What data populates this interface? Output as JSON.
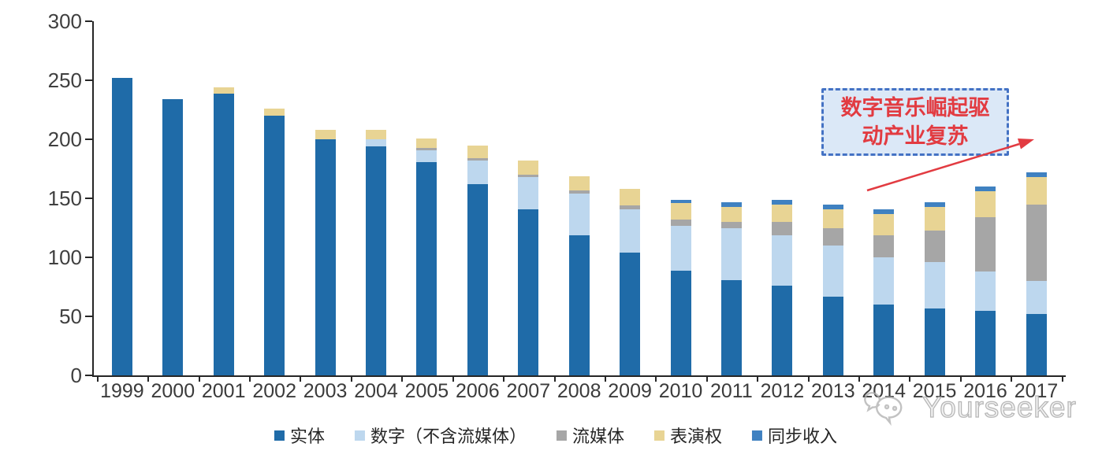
{
  "chart_data": {
    "type": "bar",
    "stacked": true,
    "title": "",
    "xlabel": "",
    "ylabel": "",
    "ylim": [
      0,
      300
    ],
    "y_ticks": [
      0,
      50,
      100,
      150,
      200,
      250,
      300
    ],
    "grid": false,
    "legend_position": "bottom",
    "categories": [
      "1999",
      "2000",
      "2001",
      "2002",
      "2003",
      "2004",
      "2005",
      "2006",
      "2007",
      "2008",
      "2009",
      "2010",
      "2011",
      "2012",
      "2013",
      "2014",
      "2015",
      "2016",
      "2017"
    ],
    "series": [
      {
        "name": "实体",
        "color": "#1f6ba8",
        "values": [
          252,
          234,
          239,
          220,
          200,
          194,
          181,
          162,
          141,
          119,
          104,
          89,
          81,
          76,
          67,
          60,
          57,
          55,
          52
        ]
      },
      {
        "name": "数字（不含流媒体）",
        "color": "#bdd7ee",
        "values": [
          0,
          0,
          0,
          0,
          0,
          6,
          10,
          20,
          27,
          35,
          37,
          38,
          44,
          43,
          43,
          40,
          39,
          33,
          28
        ]
      },
      {
        "name": "流媒体",
        "color": "#a6a6a6",
        "values": [
          0,
          0,
          0,
          0,
          0,
          0,
          2,
          2,
          2,
          3,
          3,
          5,
          5,
          11,
          15,
          19,
          27,
          46,
          65
        ]
      },
      {
        "name": "表演权",
        "color": "#e8d494",
        "values": [
          0,
          0,
          5,
          6,
          8,
          8,
          8,
          11,
          12,
          12,
          14,
          14,
          13,
          15,
          16,
          18,
          20,
          22,
          23
        ]
      },
      {
        "name": "同步收入",
        "color": "#3f81c1",
        "values": [
          0,
          0,
          0,
          0,
          0,
          0,
          0,
          0,
          0,
          0,
          0,
          3,
          4,
          4,
          4,
          4,
          4,
          4,
          4
        ]
      }
    ]
  },
  "annotation": {
    "text": "数字音乐崛起驱\n动产业复苏",
    "text_color": "#e23b41",
    "border_color": "#4472c4",
    "fill_color": "#dbe8f7",
    "arrow_color": "#e23b41"
  },
  "watermark": {
    "text": "Yourseeker",
    "icon": "chat-bubbles-smiley-icon",
    "color": "#b0b0b0"
  },
  "style": {
    "axis_line_color": "#262626",
    "axis_label_color": "#3f3f3f"
  }
}
